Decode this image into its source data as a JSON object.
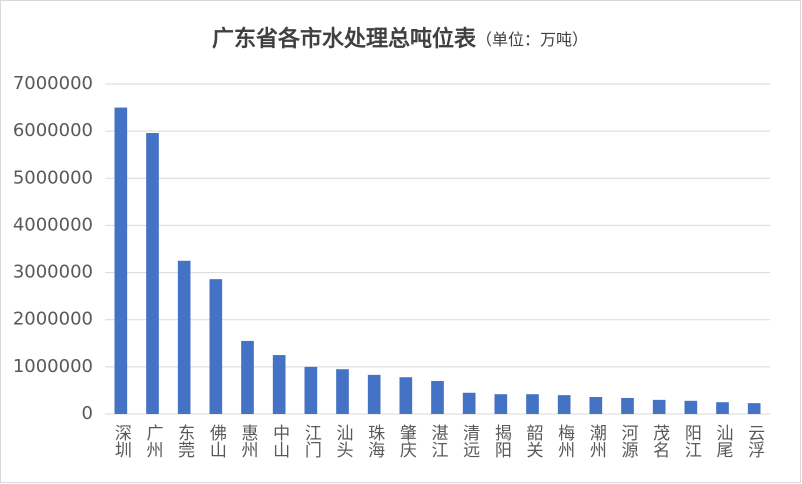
{
  "chart_data": {
    "type": "bar",
    "title": "广东省各市水处理总吨位表",
    "subtitle": "（单位：万吨）",
    "categories": [
      "深圳",
      "广州",
      "东莞",
      "佛山",
      "惠州",
      "中山",
      "江门",
      "汕头",
      "珠海",
      "肇庆",
      "湛江",
      "清远",
      "揭阳",
      "韶关",
      "梅州",
      "潮州",
      "河源",
      "茂名",
      "阳江",
      "汕尾",
      "云浮"
    ],
    "values": [
      6500000,
      5960000,
      3250000,
      2860000,
      1550000,
      1250000,
      1000000,
      950000,
      830000,
      780000,
      700000,
      450000,
      420000,
      420000,
      400000,
      360000,
      340000,
      300000,
      280000,
      250000,
      230000
    ],
    "color": "#4472c4",
    "ylim": [
      0,
      7000000
    ],
    "yticks": [
      0,
      1000000,
      2000000,
      3000000,
      4000000,
      5000000,
      6000000,
      7000000
    ],
    "grid": true
  }
}
